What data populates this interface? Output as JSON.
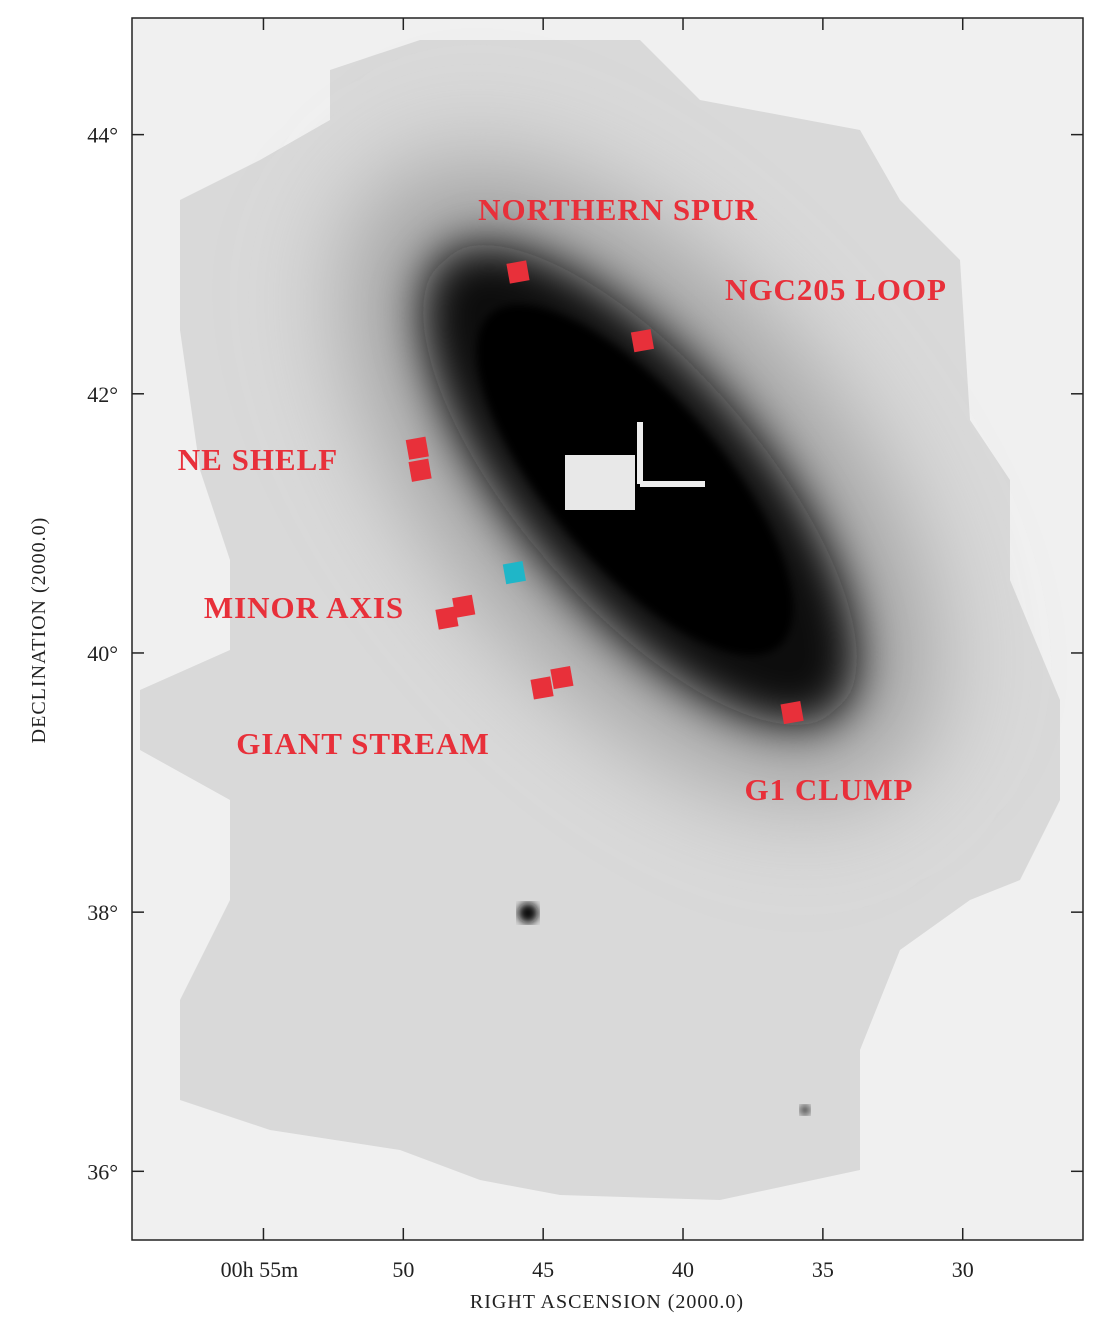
{
  "chart_data": {
    "type": "scatter",
    "xlabel": "RIGHT ASCENSION (2000.0)",
    "ylabel": "DECLINATION (2000.0)",
    "xlim": [
      59.7,
      25.7
    ],
    "ylim": [
      35.47,
      44.9
    ],
    "xticks": [
      {
        "value": 55,
        "label": "00h 55m"
      },
      50,
      45,
      40,
      35,
      30
    ],
    "yticks": [
      {
        "value": 36,
        "label": "36°"
      },
      {
        "value": 38,
        "label": "38°"
      },
      {
        "value": 40,
        "label": "40°"
      },
      {
        "value": 42,
        "label": "42°"
      },
      {
        "value": 44,
        "label": "44°"
      }
    ],
    "series": [
      {
        "color": "#e8303a",
        "x": [
          45.9,
          41.45,
          49.5,
          49.4,
          47.84,
          48.44,
          44.33,
          45.04,
          36.1
        ],
        "y": [
          42.94,
          42.41,
          41.58,
          41.41,
          40.36,
          40.27,
          39.81,
          39.73,
          39.54
        ]
      },
      {
        "color": "#1fb6c8",
        "x": [
          46.03
        ],
        "y": [
          40.62
        ]
      }
    ],
    "annotations": [
      "NORTHERN SPUR",
      "NGC205 LOOP",
      "NE SHELF",
      "MINOR AXIS",
      "GIANT STREAM",
      "G1 CLUMP"
    ]
  }
}
